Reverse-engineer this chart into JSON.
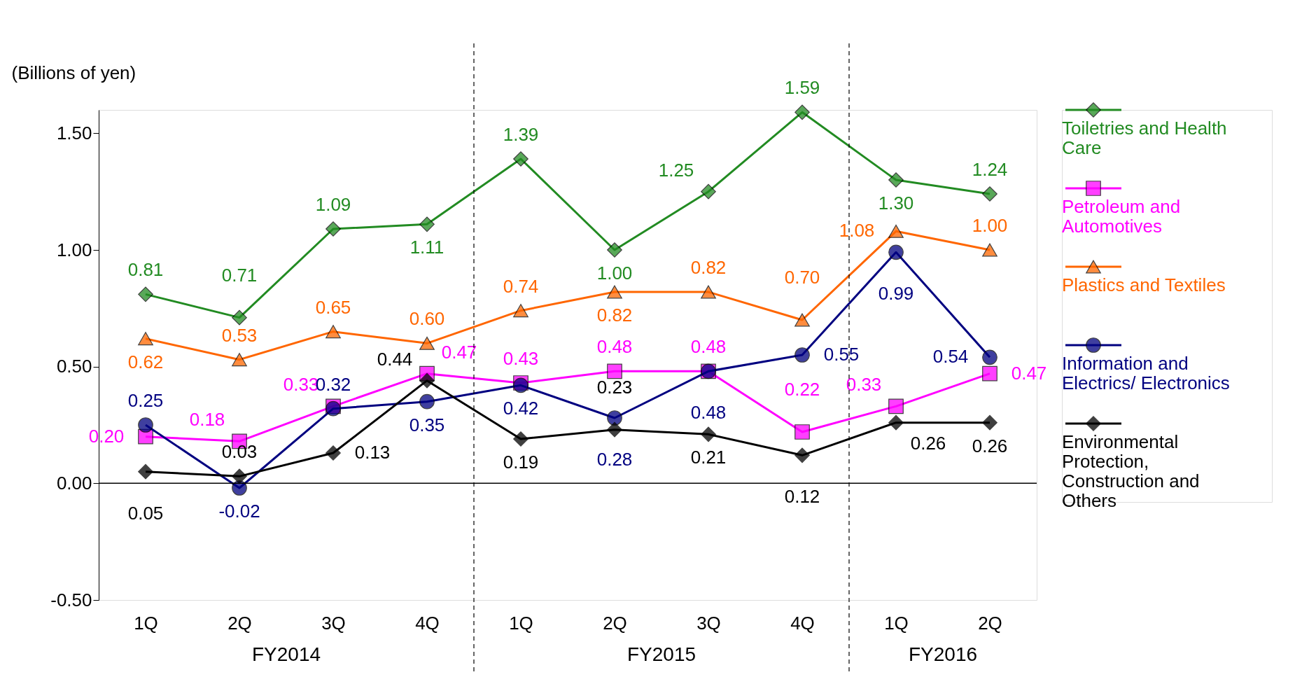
{
  "chart_data": {
    "type": "line",
    "categories": [
      "1Q",
      "2Q",
      "3Q",
      "4Q",
      "1Q",
      "2Q",
      "3Q",
      "4Q",
      "1Q",
      "2Q"
    ],
    "ylabel": "(Billions of yen)",
    "ylim": [
      -0.5,
      1.6
    ],
    "yticks": [
      {
        "value": -0.5,
        "label": "-0.50"
      },
      {
        "value": 0,
        "label": "0.00"
      },
      {
        "value": 0.5,
        "label": "0.50"
      },
      {
        "value": 1,
        "label": "1.00"
      },
      {
        "value": 1.5,
        "label": "1.50"
      }
    ],
    "series": [
      {
        "name": "Toiletries and Health Care",
        "color": "#228b22",
        "marker": "diamond",
        "values": [
          0.81,
          0.71,
          1.09,
          1.11,
          1.39,
          1.0,
          1.25,
          1.59,
          1.3,
          1.24
        ],
        "value_labels": [
          "0.81",
          "0.71",
          "1.09",
          "1.11",
          "1.39",
          "1.00",
          "1.25",
          "1.59",
          "1.30",
          "1.24"
        ]
      },
      {
        "name": "Petroleum and Automotives",
        "color": "#ff00ff",
        "marker": "square",
        "values": [
          0.2,
          0.18,
          0.33,
          0.47,
          0.43,
          0.48,
          0.48,
          0.22,
          0.33,
          0.47
        ],
        "value_labels": [
          "0.20",
          "0.18",
          "0.33",
          "0.47",
          "0.43",
          "0.48",
          "0.48",
          "0.22",
          "0.33",
          "0.47"
        ]
      },
      {
        "name": "Plastics and Textiles",
        "color": "#ff6600",
        "marker": "triangle",
        "values": [
          0.62,
          0.53,
          0.65,
          0.6,
          0.74,
          0.82,
          0.82,
          0.7,
          1.08,
          1.0
        ],
        "value_labels": [
          "0.62",
          "0.53",
          "0.65",
          "0.60",
          "0.74",
          "0.82",
          "0.82",
          "0.70",
          "1.08",
          "1.00"
        ]
      },
      {
        "name": "Information and Electrics/ Electronics",
        "color": "#000080",
        "marker": "circle",
        "values": [
          0.25,
          -0.02,
          0.32,
          0.35,
          0.42,
          0.28,
          0.48,
          0.55,
          0.99,
          0.54
        ],
        "value_labels": [
          "0.25",
          "-0.02",
          "0.32",
          "0.35",
          "0.42",
          "0.28",
          "0.48",
          "0.55",
          "0.99",
          "0.54"
        ]
      },
      {
        "name": "Environmental Protection, Construction and Others",
        "color": "#000000",
        "marker": "diamond",
        "values": [
          0.05,
          0.03,
          0.13,
          0.44,
          0.19,
          0.23,
          0.21,
          0.12,
          0.26,
          0.26
        ],
        "value_labels": [
          "0.05",
          "0.03",
          "0.13",
          "0.44",
          "0.19",
          "0.23",
          "0.21",
          "0.12",
          "0.26",
          "0.26"
        ]
      }
    ],
    "annotations": [
      "FY2014",
      "FY2015",
      "FY2016"
    ],
    "grid": false,
    "legend": "right",
    "line_style": "solid"
  }
}
